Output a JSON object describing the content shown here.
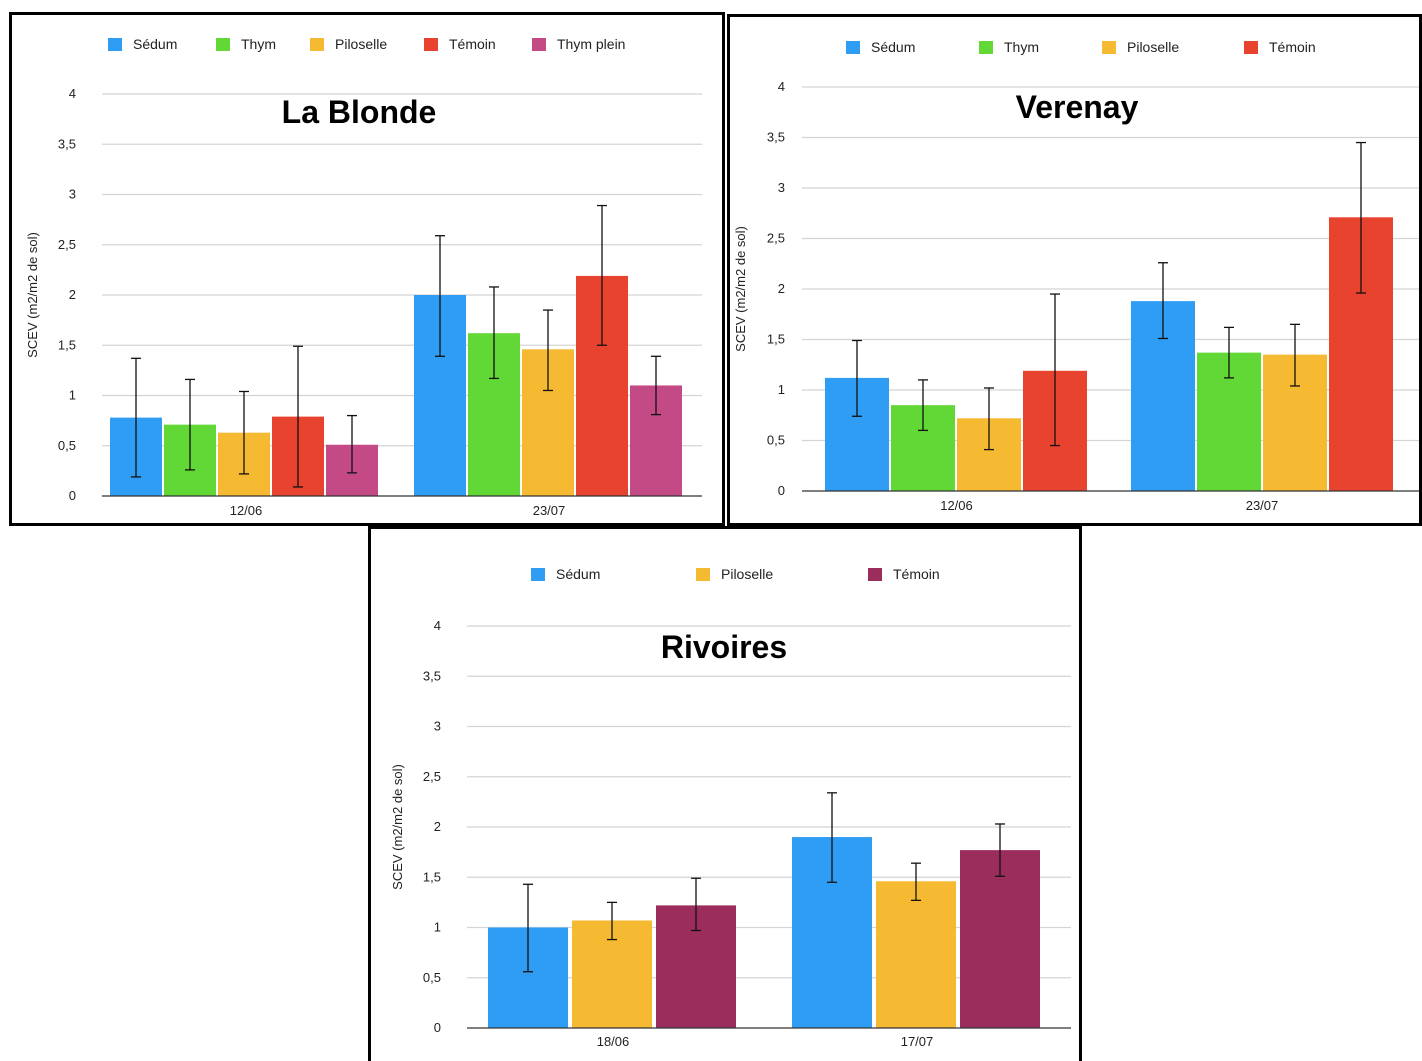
{
  "chart_data": [
    {
      "type": "bar",
      "title": "La Blonde",
      "ylabel": "SCEV (m2/m2 de sol)",
      "xlabel": "",
      "ylim": [
        0,
        4
      ],
      "yticks": [
        "0",
        "0,5",
        "1",
        "1,5",
        "2",
        "2,5",
        "3",
        "3,5",
        "4"
      ],
      "grid": true,
      "legend_position": "top",
      "categories": [
        "12/06",
        "23/07"
      ],
      "series": [
        {
          "name": "Sédum",
          "color": "#2f9df4",
          "values": [
            0.78,
            2.0
          ],
          "err_low": [
            0.19,
            1.39
          ],
          "err_high": [
            1.37,
            2.59
          ]
        },
        {
          "name": "Thym",
          "color": "#62d836",
          "values": [
            0.71,
            1.62
          ],
          "err_low": [
            0.26,
            1.17
          ],
          "err_high": [
            1.16,
            2.08
          ]
        },
        {
          "name": "Piloselle",
          "color": "#f6b932",
          "values": [
            0.63,
            1.46
          ],
          "err_low": [
            0.22,
            1.05
          ],
          "err_high": [
            1.04,
            1.85
          ]
        },
        {
          "name": "Témoin",
          "color": "#e8432f",
          "values": [
            0.79,
            2.19
          ],
          "err_low": [
            0.09,
            1.5
          ],
          "err_high": [
            1.49,
            2.89
          ]
        },
        {
          "name": "Thym plein",
          "color": "#c44a86",
          "values": [
            0.51,
            1.1
          ],
          "err_low": [
            0.23,
            0.81
          ],
          "err_high": [
            0.8,
            1.39
          ]
        }
      ]
    },
    {
      "type": "bar",
      "title": "Verenay",
      "ylabel": "SCEV (m2/m2 de sol)",
      "xlabel": "",
      "ylim": [
        0,
        4
      ],
      "yticks": [
        "0",
        "0,5",
        "1",
        "1,5",
        "2",
        "2,5",
        "3",
        "3,5",
        "4"
      ],
      "grid": true,
      "legend_position": "top",
      "categories": [
        "12/06",
        "23/07"
      ],
      "series": [
        {
          "name": "Sédum",
          "color": "#2f9df4",
          "values": [
            1.12,
            1.88
          ],
          "err_low": [
            0.74,
            1.51
          ],
          "err_high": [
            1.49,
            2.26
          ]
        },
        {
          "name": "Thym",
          "color": "#62d836",
          "values": [
            0.85,
            1.37
          ],
          "err_low": [
            0.6,
            1.12
          ],
          "err_high": [
            1.1,
            1.62
          ]
        },
        {
          "name": "Piloselle",
          "color": "#f6b932",
          "values": [
            0.72,
            1.35
          ],
          "err_low": [
            0.41,
            1.04
          ],
          "err_high": [
            1.02,
            1.65
          ]
        },
        {
          "name": "Témoin",
          "color": "#e8432f",
          "values": [
            1.19,
            2.71
          ],
          "err_low": [
            0.45,
            1.96
          ],
          "err_high": [
            1.95,
            3.45
          ]
        }
      ]
    },
    {
      "type": "bar",
      "title": "Rivoires",
      "ylabel": "SCEV (m2/m2 de sol)",
      "xlabel": "",
      "ylim": [
        0,
        4
      ],
      "yticks": [
        "0",
        "0,5",
        "1",
        "1,5",
        "2",
        "2,5",
        "3",
        "3,5",
        "4"
      ],
      "grid": true,
      "legend_position": "top",
      "categories": [
        "18/06",
        "17/07"
      ],
      "series": [
        {
          "name": "Sédum",
          "color": "#2f9df4",
          "values": [
            1.0,
            1.9
          ],
          "err_low": [
            0.56,
            1.45
          ],
          "err_high": [
            1.43,
            2.34
          ]
        },
        {
          "name": "Piloselle",
          "color": "#f6b932",
          "values": [
            1.07,
            1.46
          ],
          "err_low": [
            0.88,
            1.27
          ],
          "err_high": [
            1.25,
            1.64
          ]
        },
        {
          "name": "Témoin",
          "color": "#9b2d5c",
          "values": [
            1.22,
            1.77
          ],
          "err_low": [
            0.97,
            1.51
          ],
          "err_high": [
            1.49,
            2.03
          ]
        }
      ]
    }
  ]
}
